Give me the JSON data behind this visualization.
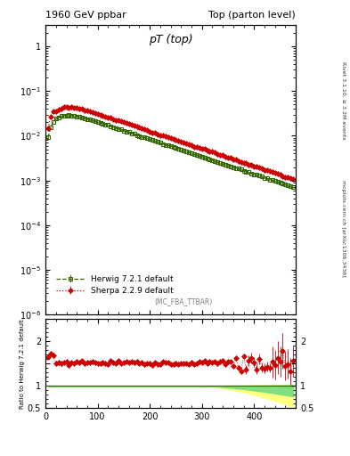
{
  "title_left": "1960 GeV ppbar",
  "title_right": "Top (parton level)",
  "main_title": "pT (top)",
  "ylabel_ratio": "Ratio to Herwig 7.2.1 default",
  "right_label_top": "Rivet 3.1.10, ≥ 3.2M events",
  "right_label_mid": "mcplots.cern.ch [arXiv:1306.3436]",
  "annotation": "(MC_FBA_TTBAR)",
  "legend_entries": [
    "Herwig 7.2.1 default",
    "Sherpa 2.2.9 default"
  ],
  "herwig_color": "#336600",
  "sherpa_color": "#cc0000",
  "background_color": "#ffffff",
  "xlim": [
    0,
    480
  ],
  "ylim_main": [
    1e-06,
    3.0
  ],
  "ylim_ratio": [
    0.5,
    2.5
  ],
  "ratio_yticks": [
    0.5,
    1.0,
    1.5,
    2.0
  ],
  "ratio_yticklabels": [
    "0.5",
    "1",
    "",
    "2"
  ]
}
